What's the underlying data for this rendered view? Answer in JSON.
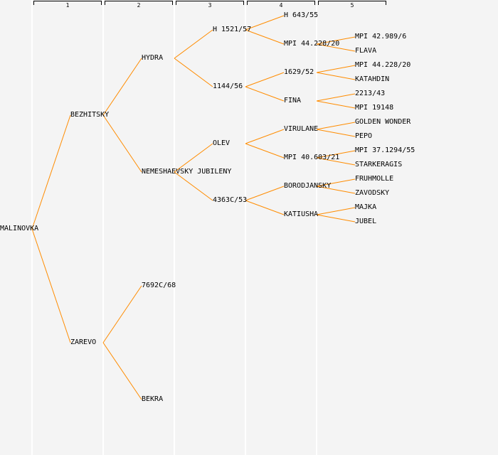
{
  "generation_headers": [
    "1",
    "2",
    "3",
    "4",
    "5"
  ],
  "line_color": "#ff8c00",
  "tree": {
    "name": "MALINOVKA",
    "children": [
      {
        "name": "BEZHITSKY",
        "children": [
          {
            "name": "HYDRA",
            "children": [
              {
                "name": "H 1521/57",
                "children": [
                  {
                    "name": "H 643/55",
                    "children": []
                  },
                  {
                    "name": "MPI 44.228/20",
                    "children": [
                      {
                        "name": "MPI 42.989/6",
                        "children": []
                      },
                      {
                        "name": "FLAVA",
                        "children": []
                      }
                    ]
                  }
                ]
              },
              {
                "name": "1144/56",
                "children": [
                  {
                    "name": "1629/52",
                    "children": [
                      {
                        "name": "MPI 44.228/20",
                        "children": []
                      },
                      {
                        "name": "KATAHDIN",
                        "children": []
                      }
                    ]
                  },
                  {
                    "name": "FINA",
                    "children": [
                      {
                        "name": "2213/43",
                        "children": []
                      },
                      {
                        "name": "MPI 19148",
                        "children": []
                      }
                    ]
                  }
                ]
              }
            ]
          },
          {
            "name": "NEMESHAEVSKY JUBILENY",
            "children": [
              {
                "name": "OLEV",
                "children": [
                  {
                    "name": "VIRULANE",
                    "children": [
                      {
                        "name": "GOLDEN WONDER",
                        "children": []
                      },
                      {
                        "name": "PEPO",
                        "children": []
                      }
                    ]
                  },
                  {
                    "name": "MPI 40.603/21",
                    "children": [
                      {
                        "name": "MPI 37.1294/55",
                        "children": []
                      },
                      {
                        "name": "STARKERAGIS",
                        "children": []
                      }
                    ]
                  }
                ]
              },
              {
                "name": "4363C/53",
                "children": [
                  {
                    "name": "BORODJANSKY",
                    "children": [
                      {
                        "name": "FRUHMOLLE",
                        "children": []
                      },
                      {
                        "name": "ZAVODSKY",
                        "children": []
                      }
                    ]
                  },
                  {
                    "name": "KATIUSHA",
                    "children": [
                      {
                        "name": "MAJKA",
                        "children": []
                      },
                      {
                        "name": "JUBEL",
                        "children": []
                      }
                    ]
                  }
                ]
              }
            ]
          }
        ]
      },
      {
        "name": "ZAREVO",
        "children": [
          {
            "name": "7692C/68",
            "children": []
          },
          {
            "name": "BEKRA",
            "children": []
          }
        ]
      }
    ]
  }
}
